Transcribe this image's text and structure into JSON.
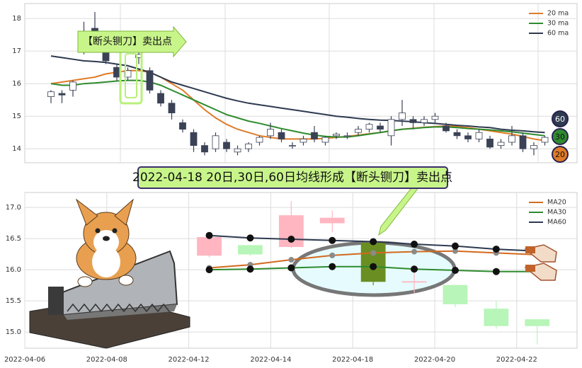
{
  "chart_data": [
    {
      "type": "candlestick",
      "open": [
        15.6,
        15.7,
        15.8,
        17.0,
        17.7,
        17.2,
        16.5,
        16.2,
        16.8,
        16.4,
        15.7,
        15.4,
        14.8,
        14.5,
        14.1,
        14.0,
        14.2,
        13.9,
        14.0,
        14.2,
        14.4,
        14.5,
        14.1,
        14.2,
        14.5,
        14.2,
        14.4,
        14.4,
        14.5,
        14.6,
        14.7,
        14.4,
        14.9,
        14.9,
        14.8,
        14.9,
        14.7,
        14.5,
        14.4,
        14.3,
        14.3,
        14.1,
        14.2,
        14.4,
        14.0,
        14.2
      ],
      "high": [
        15.8,
        15.8,
        16.1,
        17.9,
        18.2,
        17.3,
        16.6,
        16.5,
        17.0,
        16.5,
        15.8,
        15.5,
        14.9,
        14.6,
        14.2,
        14.5,
        14.3,
        14.1,
        14.2,
        14.4,
        14.8,
        14.6,
        14.2,
        14.4,
        14.7,
        14.4,
        14.5,
        14.5,
        14.7,
        14.8,
        14.8,
        15.0,
        15.5,
        15.0,
        15.0,
        15.1,
        14.8,
        14.6,
        14.5,
        14.6,
        14.4,
        14.3,
        14.7,
        14.5,
        14.2,
        14.4
      ],
      "low": [
        15.4,
        15.4,
        15.6,
        16.9,
        17.2,
        16.6,
        16.1,
        16.1,
        16.6,
        15.7,
        15.3,
        14.9,
        14.5,
        13.9,
        13.8,
        13.9,
        13.9,
        13.8,
        13.9,
        14.1,
        14.3,
        14.2,
        14.0,
        14.1,
        14.2,
        14.1,
        14.3,
        14.3,
        14.4,
        14.5,
        14.5,
        14.1,
        14.7,
        14.6,
        14.7,
        14.8,
        14.5,
        14.3,
        14.2,
        14.2,
        14.0,
        14.0,
        14.1,
        13.9,
        13.8,
        14.1
      ],
      "close": [
        15.75,
        15.65,
        16.05,
        17.5,
        17.3,
        16.7,
        16.2,
        16.4,
        16.9,
        15.8,
        15.4,
        15.1,
        14.6,
        14.1,
        13.9,
        14.4,
        14.0,
        14.0,
        14.15,
        14.35,
        14.6,
        14.3,
        14.1,
        14.3,
        14.3,
        14.35,
        14.45,
        14.4,
        14.6,
        14.75,
        14.6,
        14.9,
        15.1,
        14.8,
        14.9,
        15.0,
        14.55,
        14.4,
        14.3,
        14.5,
        14.05,
        14.2,
        14.4,
        14.0,
        14.1,
        14.35
      ],
      "up_color": "#ffffff",
      "down_color": "#3b4256",
      "edge_color": "#3b4256",
      "series": [
        {
          "name": "20 ma",
          "color": "#e07b28",
          "values": [
            16.0,
            16.05,
            16.1,
            16.15,
            16.2,
            16.3,
            16.35,
            16.4,
            16.4,
            16.35,
            16.2,
            16.0,
            15.8,
            15.5,
            15.2,
            14.95,
            14.75,
            14.6,
            14.5,
            14.4,
            14.35,
            14.3,
            14.3,
            14.3,
            14.3,
            14.32,
            14.35,
            14.38,
            14.42,
            14.46,
            14.5,
            14.55,
            14.6,
            14.63,
            14.66,
            14.68,
            14.7,
            14.68,
            14.65,
            14.6,
            14.55,
            14.5,
            14.45,
            14.38,
            14.3,
            14.25
          ]
        },
        {
          "name": "30 ma",
          "color": "#2e8b2e",
          "values": [
            16.0,
            15.95,
            15.95,
            16.0,
            16.02,
            16.05,
            16.08,
            16.1,
            16.1,
            16.05,
            15.95,
            15.8,
            15.65,
            15.5,
            15.35,
            15.2,
            15.05,
            14.95,
            14.85,
            14.78,
            14.7,
            14.62,
            14.55,
            14.48,
            14.42,
            14.38,
            14.36,
            14.36,
            14.4,
            14.45,
            14.5,
            14.55,
            14.6,
            14.62,
            14.65,
            14.67,
            14.67,
            14.65,
            14.62,
            14.6,
            14.58,
            14.55,
            14.52,
            14.48,
            14.44,
            14.4
          ]
        },
        {
          "name": "60 ma",
          "color": "#2e3a50",
          "values": [
            16.85,
            16.8,
            16.75,
            16.7,
            16.68,
            16.65,
            16.6,
            16.55,
            16.45,
            16.35,
            16.2,
            16.05,
            15.95,
            15.85,
            15.75,
            15.65,
            15.55,
            15.47,
            15.4,
            15.35,
            15.3,
            15.25,
            15.2,
            15.15,
            15.1,
            15.05,
            15.0,
            14.97,
            14.93,
            14.9,
            14.88,
            14.87,
            14.85,
            14.83,
            14.8,
            14.78,
            14.75,
            14.72,
            14.7,
            14.67,
            14.65,
            14.6,
            14.57,
            14.55,
            14.52,
            14.5
          ]
        }
      ],
      "ylim": [
        13.57,
        18.46
      ],
      "yticks": [
        14,
        15,
        16,
        17,
        18
      ],
      "grid": true,
      "legend": "upper right",
      "annotation": "【断头铡刀】卖出点",
      "markers": [
        {
          "label": "60",
          "color": "#2e3a50"
        },
        {
          "label": "30",
          "color": "#2e8b2e"
        },
        {
          "label": "20",
          "color": "#e07b28"
        }
      ]
    },
    {
      "type": "candlestick",
      "categories": [
        "2022-04-06",
        null,
        "2022-04-08",
        null,
        "2022-04-12",
        null,
        "2022-04-14",
        null,
        "2022-04-18",
        null,
        "2022-04-20",
        null,
        "2022-04-22"
      ],
      "open": [
        null,
        null,
        null,
        null,
        16.23,
        16.39,
        16.37,
        16.75,
        16.43,
        15.8,
        15.75,
        15.37,
        15.2
      ],
      "high": [
        null,
        null,
        null,
        null,
        16.55,
        16.4,
        17.1,
        16.95,
        16.45,
        15.95,
        15.75,
        15.5,
        15.2
      ],
      "low": [
        null,
        null,
        null,
        null,
        16.2,
        16.22,
        16.35,
        16.6,
        15.75,
        15.63,
        15.4,
        15.05,
        14.8
      ],
      "close": [
        null,
        null,
        null,
        null,
        16.52,
        16.25,
        16.87,
        16.83,
        15.81,
        15.81,
        15.45,
        15.1,
        15.1
      ],
      "colors": [
        null,
        null,
        null,
        null,
        "#ffb6c1",
        "#b8f5b8",
        "#ffb6c1",
        "#ffb6c1",
        "#6b8e23",
        "#ffb6c1",
        "#b8f5b8",
        "#b8f5b8",
        "#b8f5b8"
      ],
      "series": [
        {
          "name": "MA20",
          "color": "#d2691e",
          "values": [
            null,
            null,
            null,
            null,
            16.03,
            16.08,
            16.16,
            16.23,
            16.27,
            16.29,
            16.3,
            16.27,
            16.24
          ]
        },
        {
          "name": "MA30",
          "color": "#2e8b2e",
          "values": [
            null,
            null,
            null,
            null,
            16.0,
            16.01,
            16.03,
            16.05,
            16.05,
            16.01,
            15.99,
            15.97,
            15.97
          ]
        },
        {
          "name": "MA60",
          "color": "#2e3a50",
          "values": [
            null,
            null,
            null,
            null,
            16.55,
            16.51,
            16.49,
            16.47,
            16.45,
            16.41,
            16.38,
            16.33,
            16.3
          ]
        }
      ],
      "ylim": [
        14.74,
        17.24
      ],
      "yticks": [
        {
          "value": 15,
          "label": "15.0"
        },
        {
          "value": 15.5,
          "label": "15.5"
        },
        {
          "value": 16,
          "label": "16.0"
        },
        {
          "value": 16.5,
          "label": "16.5"
        },
        {
          "value": 17,
          "label": "17.0"
        }
      ],
      "grid": true,
      "legend": "upper right",
      "annotation": "2022-04-18 20日,30日,60日均线形成【断头铡刀】卖出点"
    }
  ]
}
